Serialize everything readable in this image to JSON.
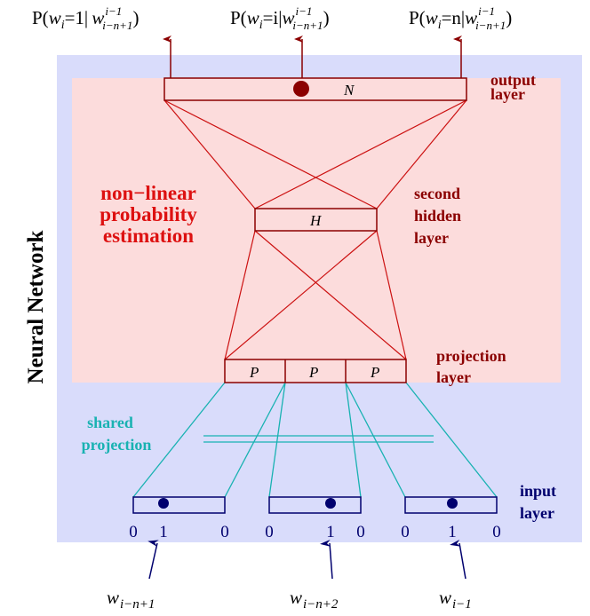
{
  "colors": {
    "outer_bg": "#d9dcfb",
    "inner_bg": "#fcdcdc",
    "red_line": "#cc1111",
    "dark_red": "#8b0000",
    "label_red": "#dd1111",
    "navy": "#00006e",
    "teal": "#19b2b2",
    "black": "#000000"
  },
  "side_label": "Neural Network",
  "outputs": {
    "o1": {
      "pre": "P(",
      "w": "w",
      "sub": "i",
      "eq": "=1| ",
      "cw": "w",
      "sup": "i−1",
      "csub": "i−n+1",
      "post": ")"
    },
    "o2": {
      "pre": "P(",
      "w": "w",
      "sub": "i",
      "eq": "=i|",
      "cw": "w",
      "sup": "i−1",
      "csub": "i−n+1",
      "post": ")"
    },
    "o3": {
      "pre": "P(",
      "w": "w",
      "sub": "i",
      "eq": "=n|",
      "cw": "w",
      "sup": "i−1",
      "csub": "i−n+1",
      "post": ")"
    }
  },
  "output_layer": {
    "box_label": "N",
    "label_line1": "output",
    "label_line2": "layer"
  },
  "hidden_layer": {
    "box_label": "H",
    "label_line1": "second",
    "label_line2": "hidden",
    "label_line3": "layer"
  },
  "estimation_label": {
    "line1": "non−linear",
    "line2": "probability",
    "line3": "estimation"
  },
  "projection_layer": {
    "cells": [
      "P",
      "P",
      "P"
    ],
    "label_line1": "projection",
    "label_line2": "layer"
  },
  "shared_label": {
    "line1": "shared",
    "line2": "projection"
  },
  "input_layer": {
    "label_line1": "input",
    "label_line2": "layer",
    "groups": [
      {
        "left": "0",
        "mid": "1",
        "right": "0"
      },
      {
        "left": "0",
        "mid": "1",
        "right": "0"
      },
      {
        "left": "0",
        "mid": "1",
        "right": "0"
      }
    ]
  },
  "inputs": [
    {
      "w": "w",
      "sub": "i−n+1"
    },
    {
      "w": "w",
      "sub": "i−n+2"
    },
    {
      "w": "w",
      "sub": "i−1"
    }
  ]
}
